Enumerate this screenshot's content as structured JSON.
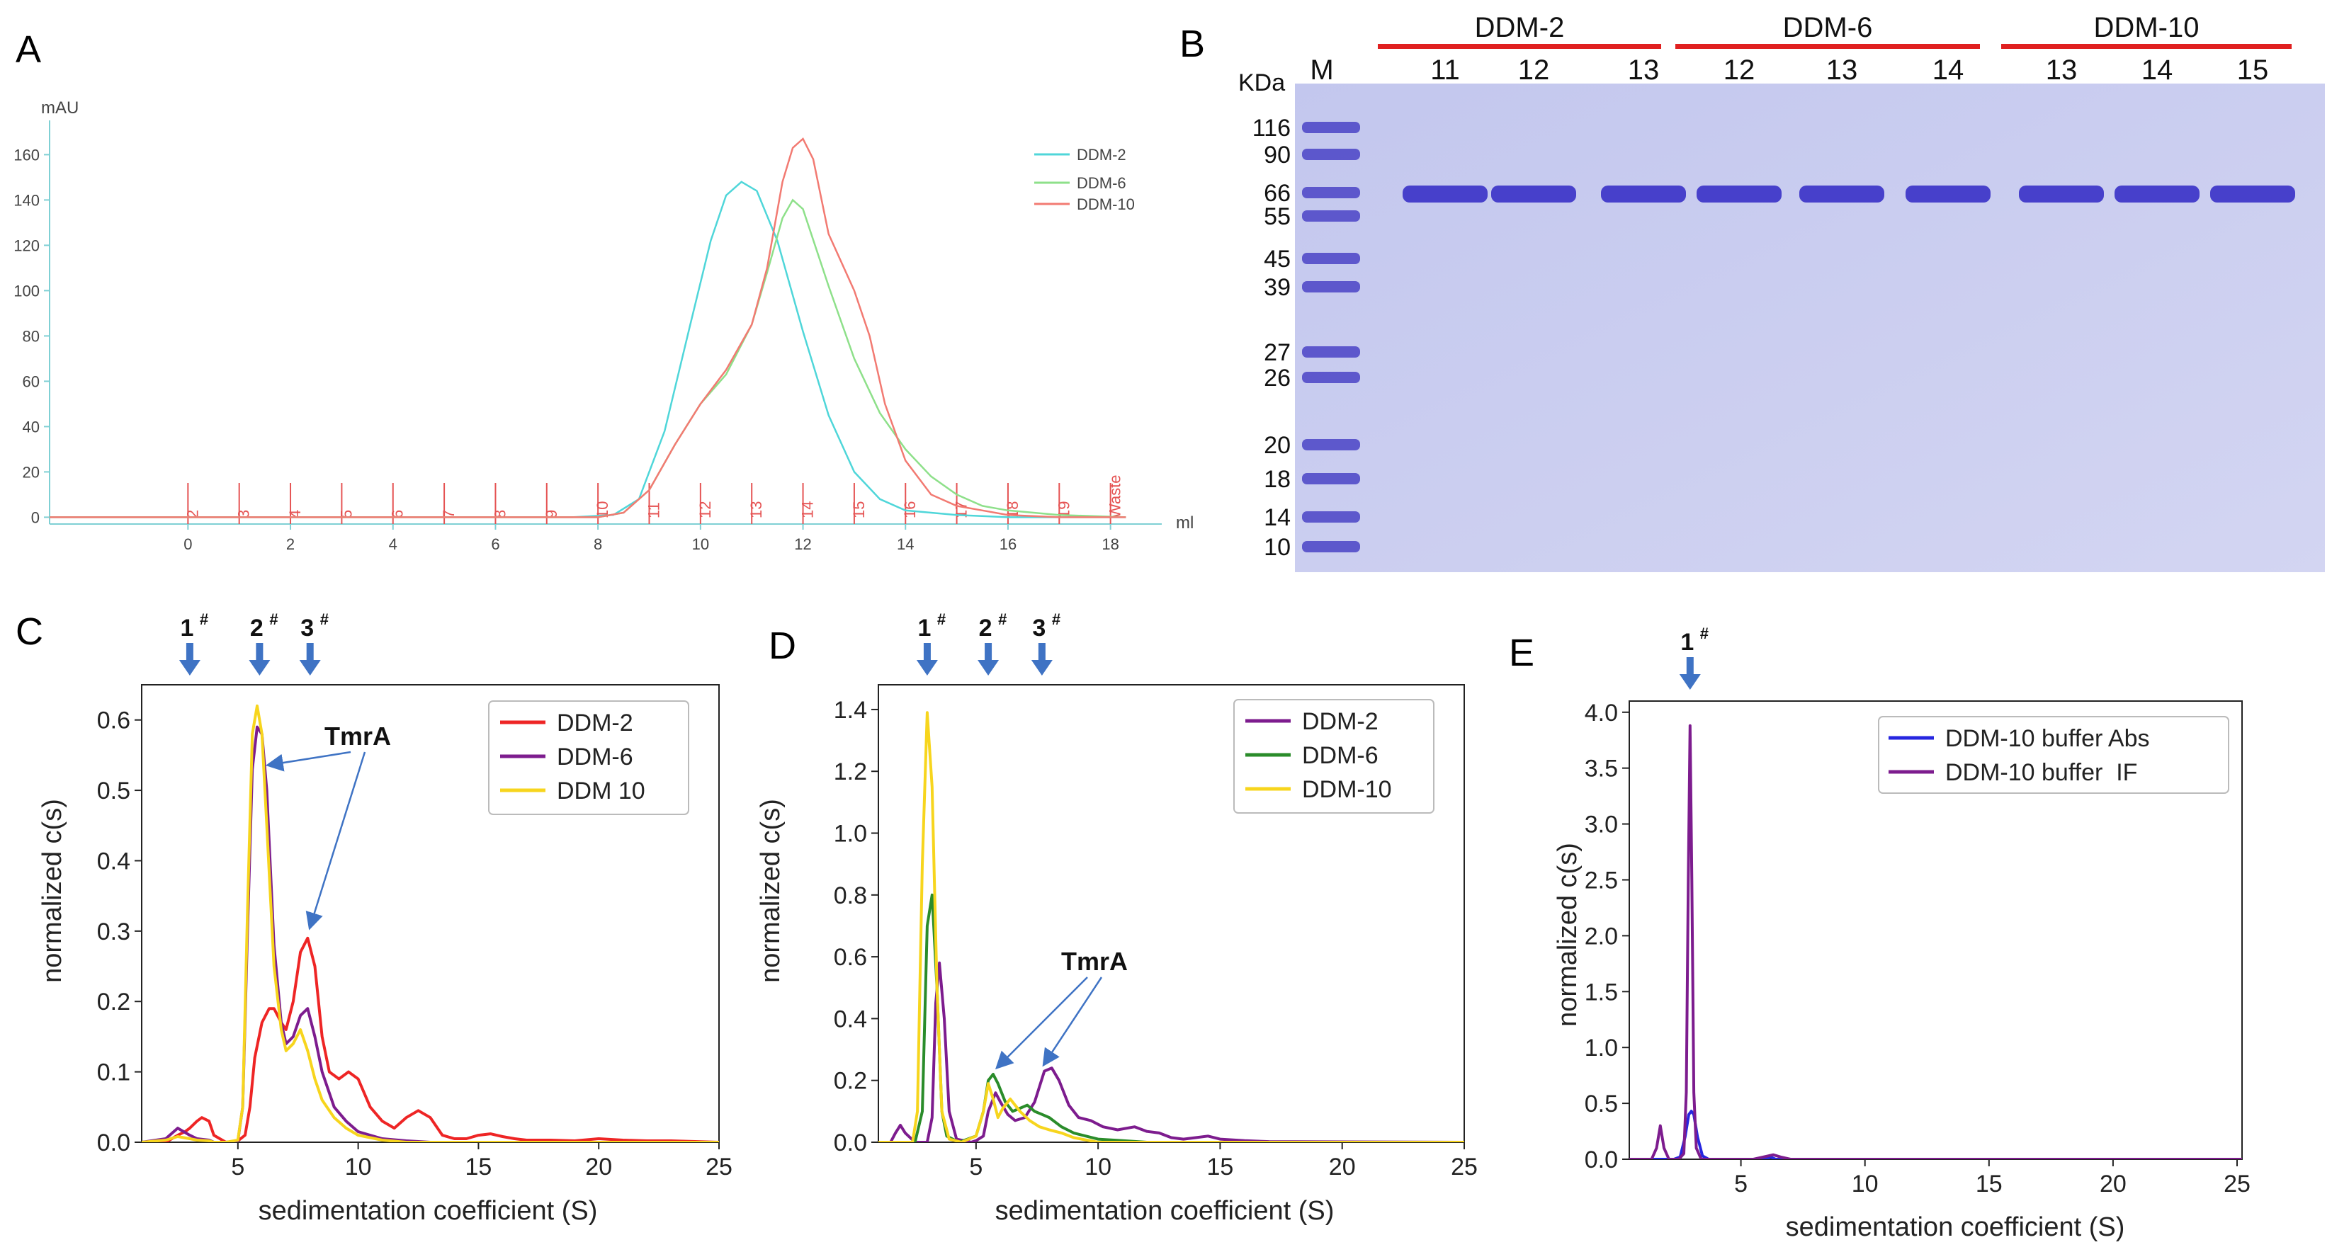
{
  "panel_labels": {
    "A": "A",
    "B": "B",
    "C": "C",
    "D": "D",
    "E": "E"
  },
  "colors": {
    "cyan": "#4fd6d9",
    "lightgreen": "#8ee08a",
    "salmon": "#f27a72",
    "red": "#ee2525",
    "purple": "#7d1c8e",
    "yellow": "#f7d51d",
    "green": "#2a8c2a",
    "blue": "#2626e0",
    "arrow": "#3f73c4",
    "gel_bg": "#c9ccee",
    "band": "#3c34c8"
  },
  "chart_data": [
    {
      "id": "A",
      "type": "line",
      "ylabel": "mAU",
      "xlabel": "ml",
      "xlim": [
        -2.7,
        19
      ],
      "ylim": [
        -3,
        172
      ],
      "xticks": [
        0,
        2,
        4,
        6,
        8,
        10,
        12,
        14,
        16,
        18
      ],
      "yticks": [
        0,
        20,
        40,
        60,
        80,
        100,
        120,
        140,
        160
      ],
      "fractions": {
        "labels": [
          "2",
          "3",
          "4",
          "5",
          "6",
          "7",
          "8",
          "9",
          "10",
          "11",
          "12",
          "13",
          "14",
          "15",
          "16",
          "17",
          "18",
          "19",
          "Waste"
        ],
        "positions": [
          0,
          1,
          2,
          3,
          4,
          5,
          6,
          7,
          8,
          9,
          10,
          11,
          12,
          13,
          14,
          15,
          16,
          17,
          18
        ]
      },
      "series": [
        {
          "name": "DDM-2",
          "color": "#4fd6d9",
          "x": [
            -2.7,
            7.5,
            8.3,
            8.8,
            9.3,
            9.8,
            10.2,
            10.5,
            10.8,
            11.1,
            11.5,
            12,
            12.5,
            13,
            13.5,
            14,
            15,
            16,
            17,
            18.3
          ],
          "y": [
            0,
            0,
            1,
            8,
            38,
            85,
            122,
            142,
            148,
            144,
            122,
            82,
            45,
            20,
            8,
            3,
            1,
            0,
            0,
            0
          ]
        },
        {
          "name": "DDM-6",
          "color": "#8ee08a",
          "x": [
            -2.7,
            8,
            8.5,
            9,
            9.5,
            10,
            10.5,
            11,
            11.3,
            11.6,
            11.8,
            12,
            12.5,
            13,
            13.5,
            14,
            14.5,
            15,
            15.5,
            16,
            17,
            18.3
          ],
          "y": [
            0,
            0,
            2,
            12,
            32,
            50,
            63,
            85,
            108,
            132,
            140,
            136,
            102,
            70,
            46,
            30,
            18,
            10,
            5,
            3,
            1,
            0
          ]
        },
        {
          "name": "DDM-10",
          "color": "#f27a72",
          "x": [
            -2.7,
            8,
            8.5,
            9,
            9.5,
            10,
            10.5,
            11,
            11.3,
            11.6,
            11.8,
            12,
            12.2,
            12.5,
            13,
            13.3,
            13.6,
            14,
            14.5,
            15,
            15.5,
            16,
            17,
            18.3
          ],
          "y": [
            0,
            0,
            2,
            12,
            32,
            50,
            65,
            85,
            110,
            148,
            163,
            167,
            158,
            125,
            100,
            80,
            50,
            25,
            10,
            5,
            3,
            1,
            0,
            0
          ]
        }
      ]
    },
    {
      "id": "C",
      "type": "line",
      "xlabel": "sedimentation coefficient (S)",
      "ylabel": "normalized c(s)",
      "xlim": [
        1,
        25
      ],
      "ylim": [
        0,
        0.65
      ],
      "xticks": [
        5,
        10,
        15,
        20,
        25
      ],
      "yticks": [
        0.0,
        0.1,
        0.2,
        0.3,
        0.4,
        0.5,
        0.6
      ],
      "markers": [
        {
          "label": "1",
          "sup": "#",
          "x": 3.0
        },
        {
          "label": "2",
          "sup": "#",
          "x": 5.9
        },
        {
          "label": "3",
          "sup": "#",
          "x": 8.0
        }
      ],
      "annotation": {
        "text": "TmrA",
        "targets": [
          [
            6.0,
            0.53
          ],
          [
            8.0,
            0.3
          ]
        ]
      },
      "series": [
        {
          "name": "DDM-2",
          "color": "#ee2525",
          "x": [
            1,
            2,
            2.5,
            2.8,
            3,
            3.3,
            3.5,
            3.8,
            4,
            4.5,
            5,
            5.3,
            5.5,
            5.7,
            6,
            6.3,
            6.5,
            6.8,
            7,
            7.3,
            7.6,
            7.9,
            8.2,
            8.5,
            8.8,
            9.2,
            9.6,
            10,
            10.5,
            11,
            11.5,
            12,
            12.5,
            13,
            13.5,
            14,
            14.5,
            15,
            15.5,
            16,
            16.5,
            17,
            18,
            19,
            20,
            21,
            22,
            23,
            24,
            25
          ],
          "y": [
            0,
            0,
            0.01,
            0.015,
            0.02,
            0.03,
            0.035,
            0.03,
            0.01,
            0,
            0.002,
            0.01,
            0.05,
            0.12,
            0.17,
            0.19,
            0.19,
            0.17,
            0.16,
            0.2,
            0.27,
            0.29,
            0.25,
            0.15,
            0.1,
            0.09,
            0.1,
            0.09,
            0.05,
            0.03,
            0.02,
            0.035,
            0.045,
            0.035,
            0.01,
            0.005,
            0.005,
            0.01,
            0.012,
            0.008,
            0.005,
            0.003,
            0.003,
            0.002,
            0.005,
            0.003,
            0.002,
            0.002,
            0.001,
            0
          ]
        },
        {
          "name": "DDM-6",
          "color": "#7d1c8e",
          "x": [
            1,
            2,
            2.5,
            3,
            3.3,
            3.8,
            4,
            4.5,
            5,
            5.2,
            5.4,
            5.6,
            5.8,
            6,
            6.2,
            6.5,
            6.8,
            7,
            7.3,
            7.6,
            7.9,
            8.2,
            8.5,
            9,
            9.5,
            10,
            11,
            12,
            13,
            25
          ],
          "y": [
            0,
            0.005,
            0.02,
            0.01,
            0.005,
            0.003,
            0,
            0,
            0.002,
            0.05,
            0.3,
            0.53,
            0.59,
            0.58,
            0.5,
            0.28,
            0.17,
            0.14,
            0.15,
            0.18,
            0.19,
            0.15,
            0.1,
            0.05,
            0.03,
            0.015,
            0.005,
            0.002,
            0,
            0
          ]
        },
        {
          "name": "DDM 10",
          "color": "#f7d51d",
          "x": [
            1,
            2,
            2.5,
            3,
            3.3,
            3.8,
            4,
            4.5,
            5,
            5.2,
            5.4,
            5.6,
            5.8,
            6,
            6.2,
            6.5,
            6.8,
            7,
            7.3,
            7.6,
            7.9,
            8.2,
            8.5,
            9,
            9.5,
            10,
            11,
            12,
            25
          ],
          "y": [
            0,
            0.003,
            0.008,
            0.005,
            0.003,
            0.002,
            0,
            0,
            0.003,
            0.05,
            0.33,
            0.58,
            0.62,
            0.58,
            0.45,
            0.25,
            0.16,
            0.13,
            0.14,
            0.16,
            0.13,
            0.09,
            0.06,
            0.035,
            0.02,
            0.01,
            0.003,
            0,
            0
          ]
        }
      ]
    },
    {
      "id": "D",
      "type": "line",
      "xlabel": "sedimentation coefficient (S)",
      "ylabel": "normalized c(s)",
      "xlim": [
        1,
        25
      ],
      "ylim": [
        0,
        1.48
      ],
      "xticks": [
        5,
        10,
        15,
        20,
        25
      ],
      "yticks": [
        0.0,
        0.2,
        0.4,
        0.6,
        0.8,
        1.0,
        1.2,
        1.4
      ],
      "markers": [
        {
          "label": "1",
          "sup": "#",
          "x": 3.0
        },
        {
          "label": "2",
          "sup": "#",
          "x": 5.5
        },
        {
          "label": "3",
          "sup": "#",
          "x": 7.7
        }
      ],
      "annotation": {
        "text": "TmrA",
        "targets": [
          [
            5.6,
            0.23
          ],
          [
            7.8,
            0.24
          ]
        ]
      },
      "series": [
        {
          "name": "DDM-2",
          "color": "#7d1c8e",
          "x": [
            1,
            1.5,
            1.7,
            1.9,
            2.1,
            2.5,
            3,
            3.2,
            3.35,
            3.5,
            3.7,
            3.9,
            4.2,
            4.8,
            5,
            5.3,
            5.5,
            5.8,
            6,
            6.3,
            6.6,
            7,
            7.4,
            7.8,
            8.1,
            8.4,
            8.8,
            9.2,
            9.7,
            10.2,
            10.8,
            11.5,
            12,
            12.5,
            13,
            13.5,
            14,
            14.5,
            15,
            16,
            17,
            25
          ],
          "y": [
            0,
            0,
            0.03,
            0.055,
            0.03,
            0,
            0,
            0.08,
            0.45,
            0.58,
            0.4,
            0.1,
            0.01,
            0,
            0.005,
            0.02,
            0.1,
            0.16,
            0.13,
            0.09,
            0.07,
            0.08,
            0.13,
            0.23,
            0.24,
            0.2,
            0.12,
            0.08,
            0.07,
            0.05,
            0.04,
            0.05,
            0.035,
            0.03,
            0.015,
            0.01,
            0.015,
            0.02,
            0.01,
            0.005,
            0.002,
            0
          ]
        },
        {
          "name": "DDM-6",
          "color": "#2a8c2a",
          "x": [
            1,
            2.5,
            2.8,
            3,
            3.2,
            3.4,
            3.6,
            3.8,
            4.3,
            5,
            5.3,
            5.5,
            5.7,
            5.9,
            6.2,
            6.5,
            6.8,
            7.1,
            7.4,
            7.7,
            8,
            8.5,
            9,
            9.5,
            10,
            11,
            12,
            25
          ],
          "y": [
            0,
            0,
            0.1,
            0.7,
            0.8,
            0.5,
            0.1,
            0.02,
            0,
            0.02,
            0.1,
            0.2,
            0.22,
            0.19,
            0.13,
            0.1,
            0.11,
            0.12,
            0.1,
            0.09,
            0.08,
            0.05,
            0.03,
            0.02,
            0.01,
            0.005,
            0,
            0
          ]
        },
        {
          "name": "DDM-10",
          "color": "#f7d51d",
          "x": [
            1,
            2.4,
            2.6,
            2.8,
            3,
            3.2,
            3.4,
            3.6,
            3.9,
            4.4,
            5,
            5.3,
            5.5,
            5.7,
            5.9,
            6.1,
            6.4,
            6.8,
            7.2,
            7.6,
            8,
            8.5,
            9,
            10,
            25
          ],
          "y": [
            0,
            0,
            0.1,
            0.9,
            1.39,
            1.15,
            0.5,
            0.1,
            0.01,
            0,
            0.02,
            0.1,
            0.19,
            0.14,
            0.08,
            0.11,
            0.14,
            0.1,
            0.07,
            0.05,
            0.04,
            0.03,
            0.015,
            0,
            0
          ]
        }
      ]
    },
    {
      "id": "E",
      "type": "line",
      "xlabel": "sedimentation coefficient (S)",
      "ylabel": "normalized c(s)",
      "xlim": [
        0.5,
        25.2
      ],
      "ylim": [
        0,
        4.1
      ],
      "xticks": [
        5,
        10,
        15,
        20,
        25
      ],
      "yticks": [
        0.0,
        0.5,
        1.0,
        1.5,
        2.0,
        2.5,
        3.0,
        3.5,
        4.0
      ],
      "markers": [
        {
          "label": "1",
          "sup": "#",
          "x": 2.95
        }
      ],
      "series": [
        {
          "name": "DDM-10 buffer Abs",
          "color": "#2626e0",
          "x": [
            0.5,
            2.3,
            2.55,
            2.75,
            2.9,
            3,
            3.1,
            3.25,
            3.45,
            3.7,
            4.5,
            6,
            6.2,
            6.4,
            7,
            25.2
          ],
          "y": [
            0,
            0,
            0.02,
            0.2,
            0.4,
            0.43,
            0.4,
            0.2,
            0.03,
            0,
            0,
            0,
            0.02,
            0,
            0,
            0
          ]
        },
        {
          "name": "DDM-10 buffer  IF",
          "color": "#7d1c8e",
          "x": [
            0.5,
            1.4,
            1.6,
            1.75,
            1.9,
            2.1,
            2.5,
            2.7,
            2.8,
            2.88,
            2.95,
            3.02,
            3.1,
            3.2,
            3.4,
            5.5,
            6.1,
            6.3,
            6.6,
            7,
            25.2
          ],
          "y": [
            0,
            0,
            0.1,
            0.3,
            0.1,
            0,
            0,
            0.05,
            0.6,
            2.5,
            3.88,
            2.5,
            0.6,
            0.1,
            0,
            0,
            0.03,
            0.04,
            0.02,
            0,
            0
          ]
        }
      ]
    },
    {
      "id": "B",
      "type": "table",
      "ladder_label": "M",
      "unit_label": "KDa",
      "marker_sizes": [
        "116",
        "90",
        "66",
        "55",
        "45",
        "39",
        "27",
        "26",
        "20",
        "18",
        "14",
        "10"
      ],
      "groups": [
        {
          "name": "DDM-2",
          "lanes": [
            "11",
            "12",
            "13"
          ]
        },
        {
          "name": "DDM-6",
          "lanes": [
            "12",
            "13",
            "14"
          ]
        },
        {
          "name": "DDM-10",
          "lanes": [
            "13",
            "14",
            "15"
          ]
        }
      ]
    }
  ]
}
